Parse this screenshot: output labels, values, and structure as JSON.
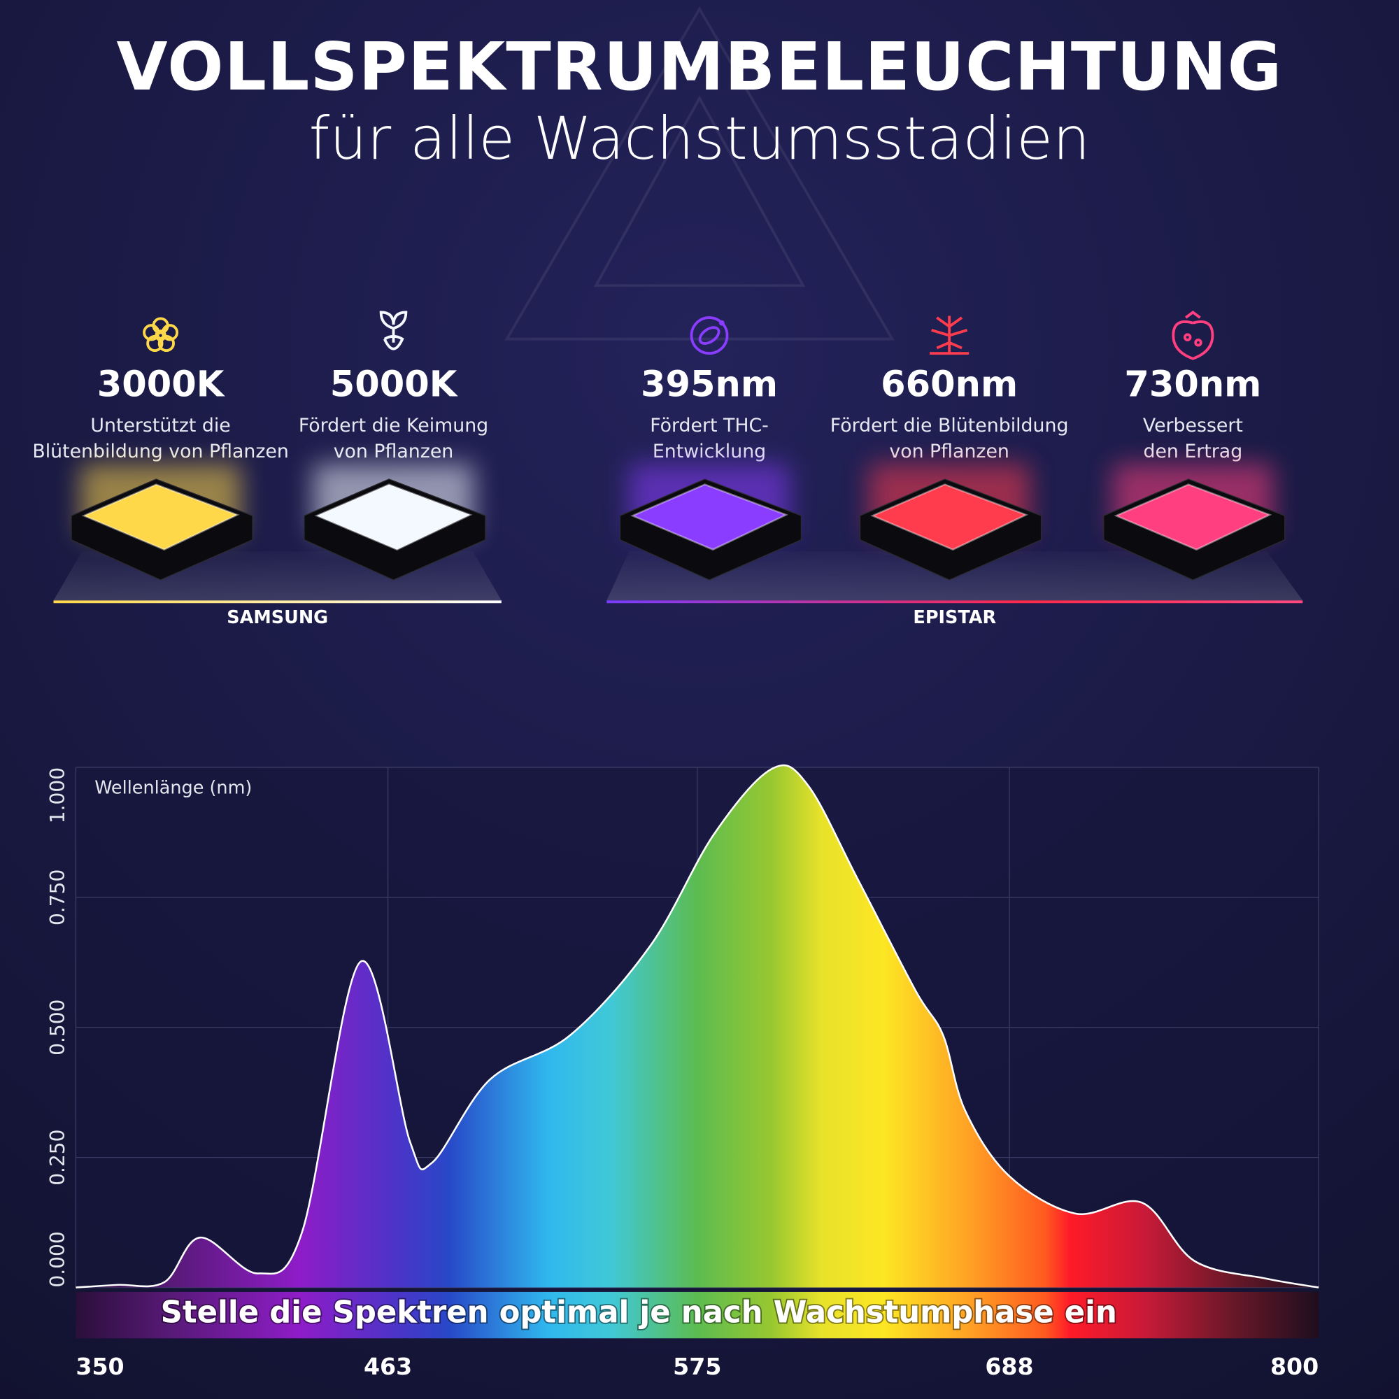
{
  "header": {
    "title": "VOLLSPEKTRUMBELEUCHTUNG",
    "subtitle": "für alle Wachstumsstadien"
  },
  "leds": [
    {
      "label": "3000K",
      "description": [
        "Unterstützt die",
        "Blütenbildung von Pflanzen"
      ],
      "color": "#ffd84a"
    },
    {
      "label": "5000K",
      "description": [
        "Fördert die Keimung",
        "von Pflanzen"
      ],
      "color": "#f4f8ff"
    },
    {
      "label": "395nm",
      "description": [
        "Fördert THC-",
        "Entwicklung"
      ],
      "color": "#8a3dff"
    },
    {
      "label": "660nm",
      "description": [
        "Fördert die Blütenbildung",
        "von Pflanzen"
      ],
      "color": "#ff3b4e"
    },
    {
      "label": "730nm",
      "description": [
        "Verbessert",
        "den Ertrag"
      ],
      "color": "#ff3f7f"
    }
  ],
  "brands": [
    {
      "name": "SAMSUNG"
    },
    {
      "name": "EPISTAR"
    }
  ],
  "chart_data": {
    "type": "area",
    "axis_label": "Wellenlänge (nm)",
    "banner": "Stelle die Spektren optimal je nach Wachstumphase ein",
    "x": [
      350,
      365,
      382,
      395,
      416,
      432,
      453,
      471,
      479,
      500,
      529,
      558,
      581,
      602,
      615,
      633,
      654,
      664,
      672,
      688,
      712,
      736,
      755,
      781,
      800
    ],
    "values": [
      0,
      0.005,
      0.01,
      0.096,
      0.027,
      0.108,
      0.626,
      0.28,
      0.24,
      0.4,
      0.485,
      0.657,
      0.871,
      0.997,
      0.966,
      0.786,
      0.571,
      0.485,
      0.34,
      0.214,
      0.142,
      0.163,
      0.051,
      0.017,
      0
    ],
    "color": "#ffffff",
    "xlim": [
      350,
      800
    ],
    "xticks": [
      350,
      463,
      575,
      688,
      800
    ],
    "ylim": [
      0,
      1
    ],
    "yticks": [
      {
        "value": 0,
        "label": "0.000"
      },
      {
        "value": 0.25,
        "label": "0.250"
      },
      {
        "value": 0.5,
        "label": "0.500"
      },
      {
        "value": 0.75,
        "label": "0.750"
      },
      {
        "value": 1,
        "label": "1.000"
      }
    ],
    "grid": true
  }
}
